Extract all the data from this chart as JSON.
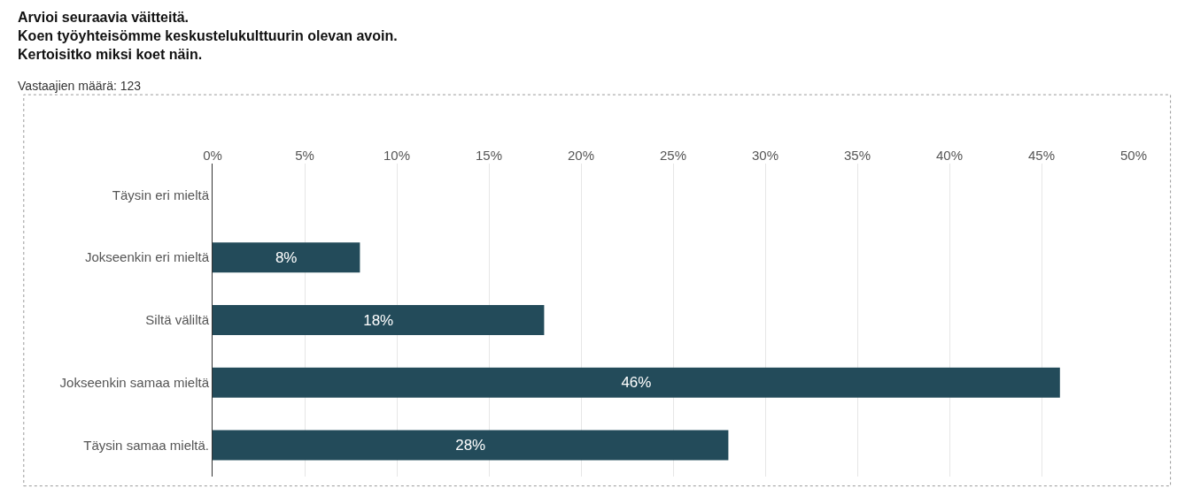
{
  "chart_data": {
    "type": "bar",
    "orientation": "horizontal",
    "title": "Arvioi seuraavia väitteitä.\nKoen työyhteisömme keskustelukulttuurin olevan avoin.\nKertoisitko miksi koet näin.",
    "subtitle": "Vastaajien määrä: 123",
    "categories": [
      "Täysin eri mieltä",
      "Jokseenkin eri mieltä",
      "Siltä väliltä",
      "Jokseenkin samaa mieltä",
      "Täysin samaa mieltä."
    ],
    "values": [
      0,
      8,
      18,
      46,
      28
    ],
    "value_labels": [
      null,
      "8%",
      "18%",
      "46%",
      "28%"
    ],
    "color": "#234b5a",
    "xlim": [
      0,
      50
    ],
    "xticks": [
      {
        "value": 0,
        "label": "0%"
      },
      {
        "value": 5,
        "label": "5%"
      },
      {
        "value": 10,
        "label": "10%"
      },
      {
        "value": 15,
        "label": "15%"
      },
      {
        "value": 20,
        "label": "20%"
      },
      {
        "value": 25,
        "label": "25%"
      },
      {
        "value": 30,
        "label": "30%"
      },
      {
        "value": 35,
        "label": "35%"
      },
      {
        "value": 40,
        "label": "40%"
      },
      {
        "value": 45,
        "label": "45%"
      },
      {
        "value": 50,
        "label": "50%"
      }
    ],
    "grid": "x",
    "legend": false
  }
}
